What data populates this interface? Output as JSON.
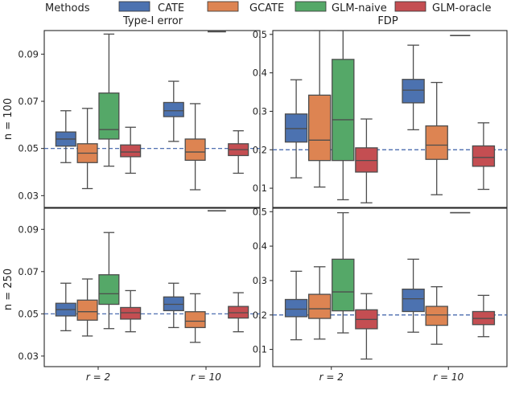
{
  "legend": {
    "title": "Methods",
    "entries": [
      {
        "name": "CATE",
        "color": "#4c72b0"
      },
      {
        "name": "GCATE",
        "color": "#dd8452"
      },
      {
        "name": "GLM-naive",
        "color": "#55a868"
      },
      {
        "name": "GLM-oracle",
        "color": "#c44e52"
      }
    ]
  },
  "chart_data": [
    {
      "type": "box",
      "title": "Type-I error",
      "row_label": "n = 100",
      "categories": [
        "r = 2",
        "r = 10"
      ],
      "yticks": [
        "0.03",
        "0.05",
        "0.07",
        "0.09"
      ],
      "ylim": [
        0.025,
        0.1
      ],
      "reference_line": 0.05,
      "series": [
        {
          "name": "CATE",
          "boxes": [
            {
              "min": 0.044,
              "q1": 0.051,
              "median": 0.054,
              "q3": 0.057,
              "max": 0.066
            },
            {
              "min": 0.053,
              "q1": 0.0635,
              "median": 0.066,
              "q3": 0.0695,
              "max": 0.0785
            }
          ]
        },
        {
          "name": "GCATE",
          "boxes": [
            {
              "min": 0.033,
              "q1": 0.044,
              "median": 0.048,
              "q3": 0.052,
              "max": 0.067
            },
            {
              "min": 0.0325,
              "q1": 0.045,
              "median": 0.0485,
              "q3": 0.054,
              "max": 0.069
            }
          ]
        },
        {
          "name": "GLM-naive",
          "boxes": [
            {
              "min": 0.0425,
              "q1": 0.054,
              "median": 0.058,
              "q3": 0.0735,
              "max": 0.0985
            },
            {
              "min": 0.0995,
              "q1": 0.0995,
              "median": 0.0995,
              "q3": 0.0995,
              "max": 0.0995
            }
          ]
        },
        {
          "name": "GLM-oracle",
          "boxes": [
            {
              "min": 0.0395,
              "q1": 0.0465,
              "median": 0.0485,
              "q3": 0.0515,
              "max": 0.059
            },
            {
              "min": 0.0395,
              "q1": 0.047,
              "median": 0.0495,
              "q3": 0.052,
              "max": 0.0575
            }
          ]
        }
      ]
    },
    {
      "type": "box",
      "title": "FDP",
      "row_label": "n = 100",
      "categories": [
        "r = 2",
        "r = 10"
      ],
      "yticks": [
        "0.1",
        "0.2",
        "0.3",
        "0.4",
        "0.5"
      ],
      "ylim": [
        0.05,
        0.51
      ],
      "reference_line": 0.2,
      "series": [
        {
          "name": "CATE",
          "boxes": [
            {
              "min": 0.127,
              "q1": 0.22,
              "median": 0.255,
              "q3": 0.293,
              "max": 0.382
            },
            {
              "min": 0.252,
              "q1": 0.322,
              "median": 0.355,
              "q3": 0.383,
              "max": 0.472
            }
          ]
        },
        {
          "name": "GCATE",
          "boxes": [
            {
              "min": 0.103,
              "q1": 0.172,
              "median": 0.225,
              "q3": 0.342,
              "max": 0.51
            },
            {
              "min": 0.083,
              "q1": 0.175,
              "median": 0.212,
              "q3": 0.262,
              "max": 0.375
            }
          ]
        },
        {
          "name": "GLM-naive",
          "boxes": [
            {
              "min": 0.07,
              "q1": 0.172,
              "median": 0.278,
              "q3": 0.435,
              "max": 0.51
            },
            {
              "min": 0.497,
              "q1": 0.497,
              "median": 0.497,
              "q3": 0.497,
              "max": 0.497
            }
          ]
        },
        {
          "name": "GLM-oracle",
          "boxes": [
            {
              "min": 0.062,
              "q1": 0.142,
              "median": 0.172,
              "q3": 0.205,
              "max": 0.28
            },
            {
              "min": 0.097,
              "q1": 0.157,
              "median": 0.18,
              "q3": 0.21,
              "max": 0.27
            }
          ]
        }
      ]
    },
    {
      "type": "box",
      "title": "",
      "row_label": "n = 250",
      "categories": [
        "r = 2",
        "r = 10"
      ],
      "yticks": [
        "0.03",
        "0.05",
        "0.07",
        "0.09"
      ],
      "ylim": [
        0.025,
        0.1
      ],
      "reference_line": 0.05,
      "series": [
        {
          "name": "CATE",
          "boxes": [
            {
              "min": 0.042,
              "q1": 0.049,
              "median": 0.052,
              "q3": 0.055,
              "max": 0.0645
            },
            {
              "min": 0.0435,
              "q1": 0.0515,
              "median": 0.0545,
              "q3": 0.058,
              "max": 0.0645
            }
          ]
        },
        {
          "name": "GCATE",
          "boxes": [
            {
              "min": 0.0395,
              "q1": 0.047,
              "median": 0.051,
              "q3": 0.0565,
              "max": 0.0665
            },
            {
              "min": 0.0365,
              "q1": 0.0435,
              "median": 0.0465,
              "q3": 0.051,
              "max": 0.0595
            }
          ]
        },
        {
          "name": "GLM-naive",
          "boxes": [
            {
              "min": 0.043,
              "q1": 0.0545,
              "median": 0.0595,
              "q3": 0.0685,
              "max": 0.0885
            },
            {
              "min": 0.0988,
              "q1": 0.0988,
              "median": 0.0988,
              "q3": 0.0988,
              "max": 0.0988
            }
          ]
        },
        {
          "name": "GLM-oracle",
          "boxes": [
            {
              "min": 0.0415,
              "q1": 0.0475,
              "median": 0.0505,
              "q3": 0.053,
              "max": 0.061
            },
            {
              "min": 0.0415,
              "q1": 0.048,
              "median": 0.0505,
              "q3": 0.0535,
              "max": 0.06
            }
          ]
        }
      ]
    },
    {
      "type": "box",
      "title": "",
      "row_label": "n = 250",
      "categories": [
        "r = 2",
        "r = 10"
      ],
      "yticks": [
        "0.1",
        "0.2",
        "0.3",
        "0.4",
        "0.5"
      ],
      "ylim": [
        0.05,
        0.51
      ],
      "reference_line": 0.2,
      "series": [
        {
          "name": "CATE",
          "boxes": [
            {
              "min": 0.128,
              "q1": 0.195,
              "median": 0.217,
              "q3": 0.245,
              "max": 0.327
            },
            {
              "min": 0.15,
              "q1": 0.21,
              "median": 0.247,
              "q3": 0.275,
              "max": 0.362
            }
          ]
        },
        {
          "name": "GCATE",
          "boxes": [
            {
              "min": 0.13,
              "q1": 0.19,
              "median": 0.218,
              "q3": 0.26,
              "max": 0.34
            },
            {
              "min": 0.115,
              "q1": 0.17,
              "median": 0.2,
              "q3": 0.225,
              "max": 0.282
            }
          ]
        },
        {
          "name": "GLM-naive",
          "boxes": [
            {
              "min": 0.148,
              "q1": 0.212,
              "median": 0.267,
              "q3": 0.362,
              "max": 0.497
            },
            {
              "min": 0.497,
              "q1": 0.497,
              "median": 0.497,
              "q3": 0.497,
              "max": 0.497
            }
          ]
        },
        {
          "name": "GLM-oracle",
          "boxes": [
            {
              "min": 0.072,
              "q1": 0.16,
              "median": 0.187,
              "q3": 0.215,
              "max": 0.262
            },
            {
              "min": 0.137,
              "q1": 0.172,
              "median": 0.19,
              "q3": 0.21,
              "max": 0.257
            }
          ]
        }
      ]
    }
  ]
}
